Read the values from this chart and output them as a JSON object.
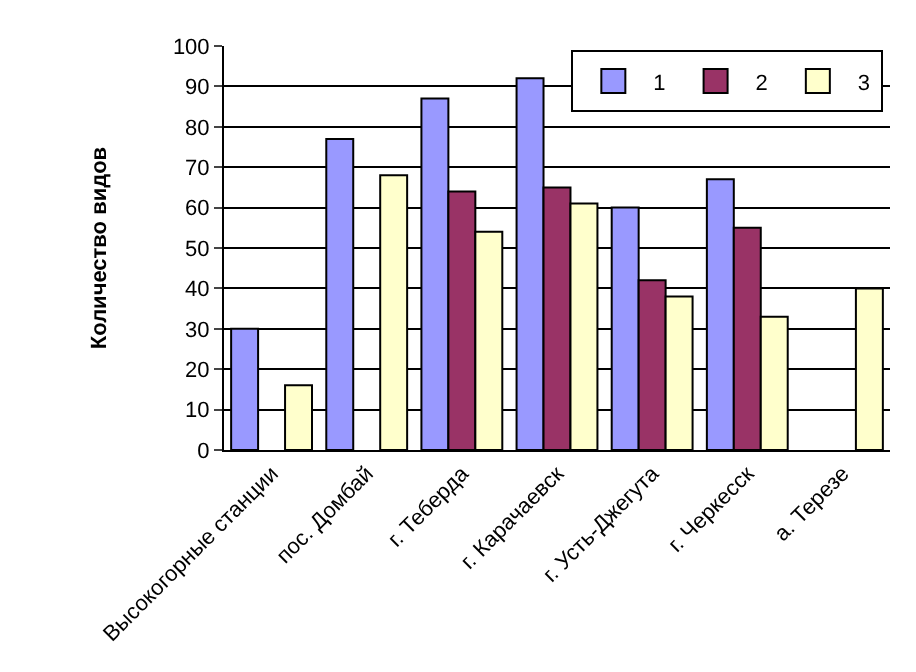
{
  "chart_data": {
    "type": "bar",
    "ylabel": "Количество видов",
    "categories": [
      "Высокогорные станции",
      "пос. Домбай",
      "г. Теберда",
      "г. Карачаевск",
      "г. Усть-Джегута",
      "г. Черкесск",
      "а. Терезе"
    ],
    "series": [
      {
        "name": "1",
        "color": "#9999ff",
        "values": [
          30,
          77,
          87,
          92,
          60,
          67,
          null
        ]
      },
      {
        "name": "2",
        "color": "#993366",
        "values": [
          null,
          null,
          64,
          65,
          42,
          55,
          null
        ]
      },
      {
        "name": "3",
        "color": "#ffffcc",
        "values": [
          16,
          68,
          54,
          61,
          38,
          33,
          40
        ]
      }
    ],
    "ylim": [
      0,
      100
    ],
    "yticks": [
      0,
      10,
      20,
      30,
      40,
      50,
      60,
      70,
      80,
      90,
      100
    ],
    "grid": "y",
    "legend": "top right"
  }
}
